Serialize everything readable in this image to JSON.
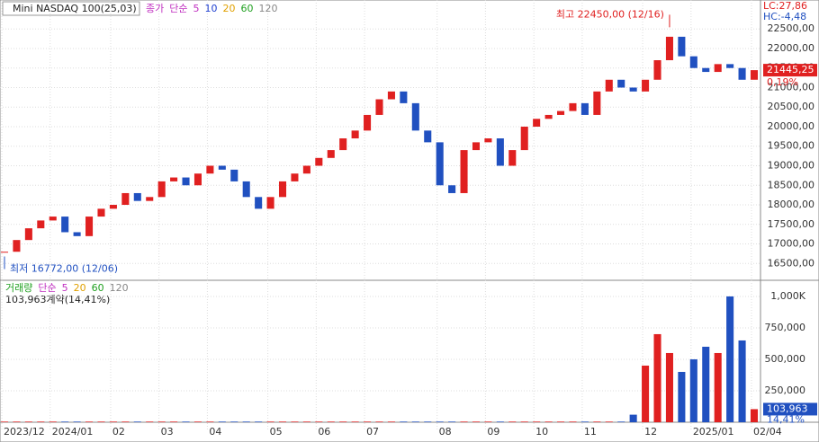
{
  "chart_data": {
    "type": "candlestick",
    "title": "Mini NASDAQ 100(25,03)",
    "legend": [
      "종가",
      "단순",
      "5",
      "10",
      "20",
      "60",
      "120"
    ],
    "legend_colors": [
      "#c030c0",
      "#c030c0",
      "#c030c0",
      "#2040d0",
      "#e0a000",
      "#20a020",
      "#888888"
    ],
    "closes": [
      16800,
      17100,
      17400,
      17600,
      17700,
      17300,
      17200,
      17700,
      17900,
      18000,
      18300,
      18100,
      18200,
      18600,
      18700,
      18500,
      18800,
      19000,
      18900,
      18600,
      18200,
      17900,
      18200,
      18600,
      18800,
      19000,
      19200,
      19400,
      19700,
      19900,
      20300,
      20700,
      20900,
      20600,
      19900,
      19600,
      18500,
      18300,
      19400,
      19600,
      19700,
      19000,
      19400,
      20000,
      20200,
      20300,
      20400,
      20600,
      20300,
      20900,
      21200,
      21000,
      20900,
      21200,
      21700,
      22300,
      21800,
      21500,
      21400,
      21600,
      21500,
      21200,
      21445.25
    ],
    "volumes": [
      5000,
      5000,
      5000,
      5000,
      5000,
      5000,
      5000,
      5000,
      5000,
      5000,
      5000,
      5000,
      5000,
      5000,
      5000,
      5000,
      5000,
      5000,
      5000,
      5000,
      5000,
      5000,
      5000,
      5000,
      5000,
      5000,
      5000,
      5000,
      5000,
      5000,
      5000,
      5000,
      5000,
      5000,
      5000,
      5000,
      5000,
      5000,
      5000,
      5000,
      5000,
      5000,
      5000,
      5000,
      5000,
      5000,
      5000,
      5000,
      5000,
      5000,
      5000,
      5000,
      60000,
      450000,
      700000,
      550000,
      400000,
      500000,
      600000,
      550000,
      1000000,
      650000,
      103963
    ],
    "xlabels": [
      {
        "value": 0,
        "label": "2023/12"
      },
      {
        "value": 4,
        "label": "2024/01"
      },
      {
        "value": 9,
        "label": "02"
      },
      {
        "value": 13,
        "label": "03"
      },
      {
        "value": 17,
        "label": "04"
      },
      {
        "value": 22,
        "label": "05"
      },
      {
        "value": 26,
        "label": "06"
      },
      {
        "value": 30,
        "label": "07"
      },
      {
        "value": 36,
        "label": "08"
      },
      {
        "value": 40,
        "label": "09"
      },
      {
        "value": 44,
        "label": "10"
      },
      {
        "value": 48,
        "label": "11"
      },
      {
        "value": 53,
        "label": "12"
      },
      {
        "value": 57,
        "label": "2025/01"
      },
      {
        "value": 62,
        "label": "02/04"
      }
    ],
    "ylim": [
      16070,
      23240
    ],
    "yticks": [
      {
        "value": 16500,
        "label": "16500,00"
      },
      {
        "value": 17000,
        "label": "17000,00"
      },
      {
        "value": 17500,
        "label": "17500,00"
      },
      {
        "value": 18000,
        "label": "18000,00"
      },
      {
        "value": 18500,
        "label": "18500,00"
      },
      {
        "value": 19000,
        "label": "19000,00"
      },
      {
        "value": 19500,
        "label": "19500,00"
      },
      {
        "value": 20000,
        "label": "20000,00"
      },
      {
        "value": 20500,
        "label": "20500,00"
      },
      {
        "value": 21000,
        "label": "21000,00"
      },
      {
        "value": 21500,
        "label": "21500,00"
      },
      {
        "value": 22000,
        "label": "22000,00"
      },
      {
        "value": 22500,
        "label": "22500,00"
      }
    ],
    "high": {
      "index": 55,
      "value": 22450,
      "label": "최고 22450,00 (12/16)"
    },
    "low": {
      "index": 0,
      "value": 16772,
      "label": "최저 16772,00 (12/06)"
    },
    "lc": "LC:27,86",
    "hc": "HC:-4,48",
    "last_label": "21445,25",
    "change_label": "0,19%",
    "volume_title": [
      "거래량",
      "단순",
      "5",
      "20",
      "60",
      "120"
    ],
    "volume_title_colors": [
      "#20a020",
      "#c030c0",
      "#c030c0",
      "#e0a000",
      "#20a020",
      "#888888"
    ],
    "volume_info": "103,963계약(14,41%)",
    "volume_last_label": "103,963",
    "volume_pct_label": "14,41%",
    "y2lim": [
      0,
      1121000
    ],
    "y2ticks": [
      {
        "value": 250000,
        "label": "250,000"
      },
      {
        "value": 500000,
        "label": "500,000"
      },
      {
        "value": 750000,
        "label": "750,000"
      },
      {
        "value": 1000000,
        "label": "1,000K"
      }
    ],
    "up_color": "#e02020",
    "down_color": "#2050c0"
  }
}
